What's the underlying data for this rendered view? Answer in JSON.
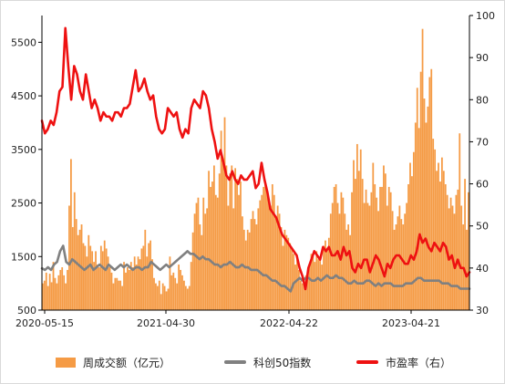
{
  "colors": {
    "bars": "#f59b45",
    "index_line": "#808080",
    "pe_line": "#ee1111",
    "axis": "#000000"
  },
  "chart_data": {
    "type": "bar+line",
    "x_tick_labels": [
      "2020-05-15",
      "2021-04-30",
      "2022-04-22",
      "2023-04-21"
    ],
    "y_left": {
      "ticks": [
        500,
        1500,
        2500,
        3500,
        4500,
        5500
      ],
      "ylim": [
        500,
        6000
      ]
    },
    "y_right": {
      "ticks": [
        30,
        40,
        50,
        60,
        70,
        80,
        90,
        100
      ],
      "ylim": [
        30,
        100
      ]
    },
    "grid": false,
    "legend_position": "bottom",
    "series": [
      {
        "name": "周成交额（亿元）",
        "type": "bar",
        "axis": "left",
        "values": [
          1000,
          1050,
          1200,
          950,
          1180,
          1020,
          1400,
          1100,
          1000,
          1150,
          1250,
          1300,
          1150,
          1000,
          1250,
          2450,
          3320,
          2050,
          2700,
          2200,
          1900,
          2000,
          2100,
          1750,
          1700,
          1500,
          1900,
          1700,
          1600,
          1400,
          1600,
          1350,
          1300,
          1700,
          1600,
          1800,
          1650,
          1500,
          1300,
          1200,
          1000,
          1100,
          1100,
          1050,
          1050,
          950,
          1400,
          1200,
          1300,
          1250,
          1400,
          1300,
          1500,
          1350,
          1500,
          1450,
          1650,
          1700,
          2000,
          1500,
          1750,
          1800,
          1450,
          1100,
          1000,
          950,
          1050,
          800,
          1000,
          950,
          850,
          900,
          1500,
          1150,
          1200,
          1100,
          1000,
          1350,
          1250,
          1150,
          1050,
          950,
          900,
          950,
          1400,
          1950,
          2300,
          2500,
          2600,
          2100,
          1900,
          2600,
          2300,
          2400,
          3100,
          2800,
          2900,
          3200,
          2650,
          2600,
          3050,
          3850,
          3250,
          4100,
          3200,
          2450,
          3050,
          3200,
          2400,
          3150,
          2950,
          2650,
          2900,
          2250,
          2000,
          1800,
          2000,
          1950,
          2200,
          2350,
          2200,
          2100,
          2400,
          2550,
          2650,
          2800,
          2900,
          2700,
          2500,
          2450,
          2850,
          2650,
          2250,
          2450,
          2300,
          2050,
          1700,
          2000,
          1900,
          1850,
          1750,
          1650,
          1550,
          1350,
          1450,
          1250,
          1050,
          1000,
          1050,
          1150,
          1200,
          1350,
          1550,
          1500,
          1400,
          1600,
          1450,
          1450,
          1350,
          1700,
          1800,
          1650,
          1850,
          2300,
          2500,
          2800,
          2850,
          2500,
          2300,
          2700,
          2600,
          2300,
          2000,
          2100,
          1900,
          2700,
          3300,
          2950,
          3600,
          3100,
          3500,
          2950,
          2500,
          2750,
          2500,
          2450,
          2700,
          3250,
          2850,
          2600,
          2350,
          2800,
          2800,
          3200,
          3050,
          2450,
          2800,
          2700,
          2350,
          2000,
          2100,
          2250,
          2450,
          2200,
          2100,
          2300,
          2500,
          2850,
          3250,
          3000,
          3450,
          4000,
          4650,
          3900,
          4950,
          5750,
          4450,
          4000,
          4300,
          4850,
          5000,
          3700,
          3500,
          3100,
          3250,
          2900,
          3350,
          3100,
          2850,
          2650,
          2400,
          2600,
          2450,
          2300,
          2650,
          2750,
          3800,
          2450,
          2100,
          2950,
          2000,
          2700
        ]
      },
      {
        "name": "科创50指数",
        "type": "line",
        "axis": "left",
        "values": [
          1280,
          1250,
          1300,
          1250,
          1350,
          1400,
          1600,
          1700,
          1400,
          1350,
          1450,
          1400,
          1350,
          1300,
          1250,
          1300,
          1350,
          1250,
          1300,
          1350,
          1300,
          1250,
          1350,
          1300,
          1250,
          1300,
          1350,
          1300,
          1350,
          1300,
          1250,
          1300,
          1300,
          1250,
          1300,
          1300,
          1400,
          1350,
          1300,
          1250,
          1300,
          1350,
          1300,
          1350,
          1400,
          1450,
          1500,
          1550,
          1600,
          1550,
          1550,
          1500,
          1450,
          1500,
          1450,
          1450,
          1400,
          1350,
          1350,
          1300,
          1350,
          1350,
          1400,
          1350,
          1300,
          1300,
          1350,
          1300,
          1300,
          1250,
          1250,
          1250,
          1200,
          1150,
          1150,
          1100,
          1050,
          1050,
          1000,
          950,
          950,
          900,
          850,
          1000,
          1050,
          1100,
          1050,
          1100,
          1100,
          1050,
          1050,
          1100,
          1050,
          1100,
          1150,
          1100,
          1100,
          1150,
          1100,
          1100,
          1050,
          1000,
          1000,
          1050,
          1000,
          1000,
          1000,
          1050,
          1050,
          1000,
          950,
          1000,
          950,
          1000,
          1000,
          1000,
          950,
          950,
          950,
          950,
          1000,
          1000,
          1000,
          1050,
          1100,
          1100,
          1050,
          1050,
          1050,
          1050,
          1050,
          1050,
          1000,
          1000,
          1000,
          950,
          950,
          950,
          900,
          900,
          900,
          900
        ]
      },
      {
        "name": "市盈率（右）",
        "type": "line",
        "axis": "right",
        "values": [
          75,
          72,
          73,
          75,
          74,
          77,
          82,
          83,
          97,
          88,
          80,
          88,
          86,
          82,
          80,
          86,
          82,
          78,
          80,
          78,
          75,
          77,
          76,
          76,
          75,
          77,
          77,
          76,
          78,
          78,
          79,
          83,
          87,
          82,
          83,
          85,
          82,
          80,
          81,
          76,
          73,
          72,
          73,
          78,
          77,
          76,
          77,
          73,
          71,
          73,
          72,
          78,
          80,
          79,
          78,
          82,
          81,
          78,
          73,
          70,
          66,
          68,
          65,
          62,
          61,
          63,
          61,
          60,
          62,
          61,
          61,
          62,
          63,
          59,
          60,
          65,
          61,
          58,
          54,
          53,
          52,
          50,
          48,
          47,
          46,
          45,
          44,
          43,
          40,
          38,
          35,
          40,
          42,
          44,
          43,
          42,
          45,
          44,
          45,
          43,
          43,
          44,
          42,
          45,
          43,
          44,
          40,
          39,
          41,
          40,
          42,
          42,
          39,
          41,
          43,
          42,
          40,
          38,
          41,
          40,
          42,
          43,
          43,
          42,
          41,
          41,
          43,
          42,
          44,
          48,
          46,
          47,
          45,
          44,
          46,
          45,
          44,
          46,
          45,
          42,
          43,
          40,
          42,
          40,
          40,
          38,
          39
        ]
      }
    ]
  },
  "legend": {
    "bars_label": "周成交额（亿元）",
    "index_label": "科创50指数",
    "pe_label": "市盈率（右）"
  }
}
